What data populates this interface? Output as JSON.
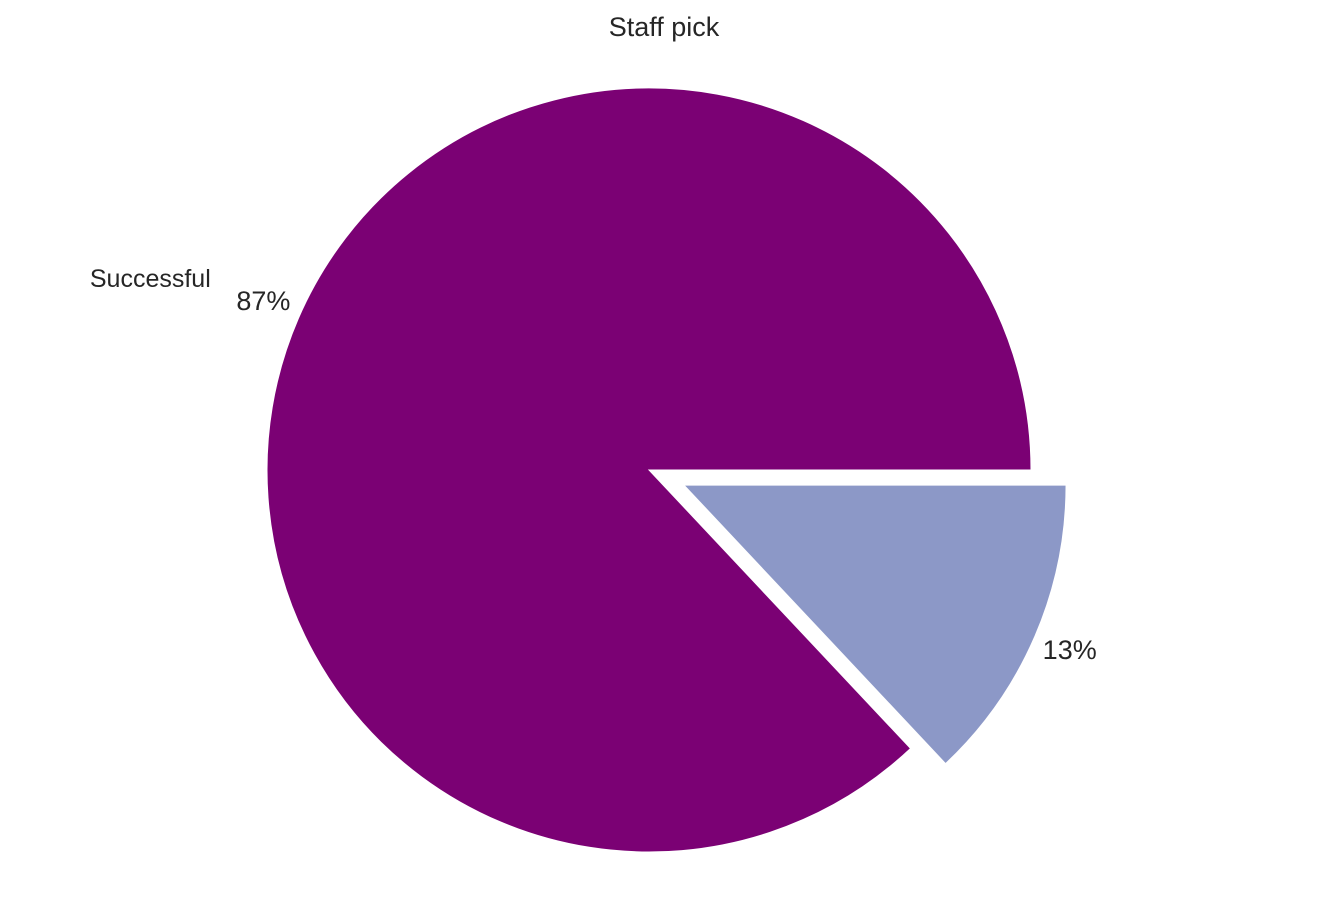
{
  "chart_data": {
    "type": "pie",
    "title": "Staff pick",
    "slices": [
      {
        "label": "Successful",
        "value": 87,
        "pct_label": "87%",
        "color": "#7b0174",
        "explode": 0
      },
      {
        "label": "",
        "value": 13,
        "pct_label": "13%",
        "color": "#8c98c7",
        "explode": 0.1
      }
    ],
    "start_angle_deg": 0,
    "direction": "counterclockwise"
  }
}
